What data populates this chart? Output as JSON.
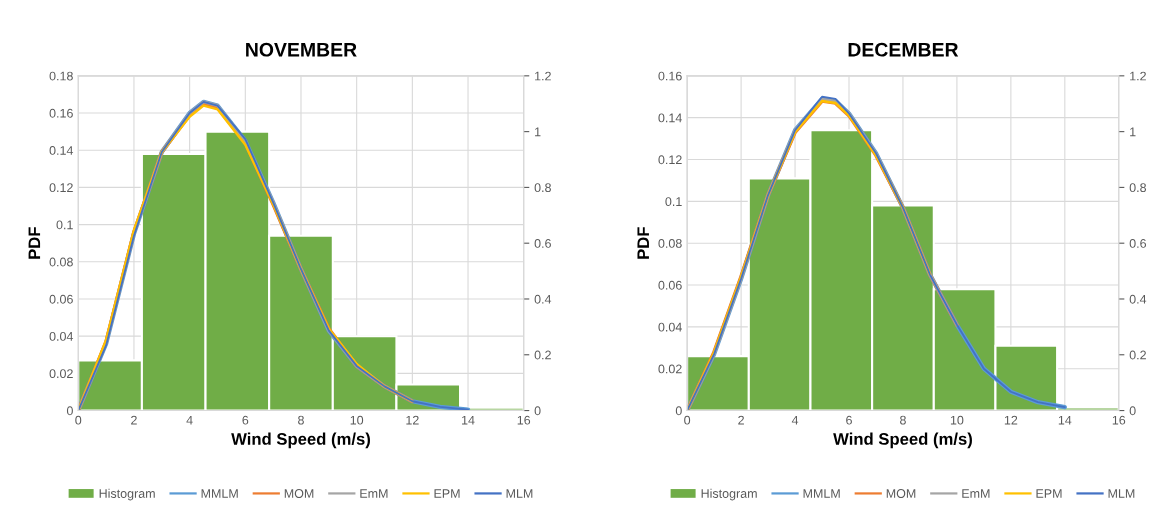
{
  "chart_data": [
    {
      "type": "histogram",
      "title": "NOVEMBER",
      "xlabel": "Wind Speed (m/s)",
      "ylabel": "PDF",
      "bins": [
        0,
        2.2857,
        4.5714,
        6.8571,
        9.1429,
        11.4286,
        13.7143,
        16
      ],
      "xlim": [
        0,
        16
      ],
      "xticks": [
        0,
        2,
        4,
        6,
        8,
        10,
        12,
        14,
        16
      ],
      "ylim": [
        0,
        0.18
      ],
      "yticks": [
        0,
        0.02,
        0.04,
        0.06,
        0.08,
        {
          "value": 0.1,
          "label": "0.1"
        },
        0.12,
        0.14,
        0.16,
        0.18
      ],
      "y2lim": [
        0,
        1.2
      ],
      "y2ticks": [
        0,
        0.2,
        0.4,
        0.6,
        0.8,
        {
          "value": 1,
          "label": "1"
        },
        1.2
      ],
      "grid": true,
      "legend": "bottom",
      "series": [
        {
          "name": "Histogram",
          "type": "histogram",
          "color": "#70ad47",
          "values": [
            0.027,
            0.138,
            0.15,
            0.094,
            0.04,
            0.014,
            0.0015
          ]
        },
        {
          "name": "MMLM",
          "type": "line",
          "color": "#5b9bd5",
          "x": [
            0,
            1,
            2,
            3,
            4,
            4.5,
            5,
            6,
            7,
            8,
            9,
            10,
            11,
            12,
            13,
            14
          ],
          "values": [
            0,
            0.036,
            0.095,
            0.139,
            0.16,
            0.166,
            0.164,
            0.145,
            0.112,
            0.076,
            0.043,
            0.024,
            0.013,
            0.005,
            0.002,
            0.0005
          ]
        },
        {
          "name": "MOM",
          "type": "line",
          "color": "#ed7d31",
          "x": [
            0,
            1,
            2,
            3,
            4,
            4.5,
            5,
            6,
            7,
            8,
            9,
            10,
            11,
            12
          ],
          "values": [
            0,
            0.037,
            0.096,
            0.139,
            0.159,
            0.165,
            0.163,
            0.144,
            0.111,
            0.076,
            0.044,
            0.024,
            0.013,
            0.005
          ]
        },
        {
          "name": "EmM",
          "type": "line",
          "color": "#a5a5a5",
          "x": [
            0,
            1,
            2,
            3,
            4,
            4.5,
            5,
            6,
            7,
            8,
            9,
            10,
            11,
            12
          ],
          "values": [
            0,
            0.036,
            0.095,
            0.139,
            0.16,
            0.166,
            0.164,
            0.145,
            0.112,
            0.076,
            0.043,
            0.024,
            0.013,
            0.005
          ]
        },
        {
          "name": "EPM",
          "type": "line",
          "color": "#ffc000",
          "x": [
            0,
            1,
            2,
            3,
            4,
            4.5,
            5,
            6,
            7,
            8,
            9,
            10,
            11,
            12
          ],
          "values": [
            0,
            0.038,
            0.097,
            0.139,
            0.158,
            0.164,
            0.162,
            0.143,
            0.111,
            0.076,
            0.044,
            0.025,
            0.013,
            0.005
          ]
        },
        {
          "name": "MLM",
          "type": "line",
          "color": "#4472c4",
          "x": [
            0,
            1,
            2,
            3,
            4,
            4.5,
            5,
            6,
            7,
            8,
            9,
            10,
            11,
            12,
            13,
            14
          ],
          "values": [
            0,
            0.035,
            0.094,
            0.139,
            0.16,
            0.166,
            0.164,
            0.146,
            0.112,
            0.076,
            0.043,
            0.024,
            0.013,
            0.005,
            0.002,
            0.0005
          ]
        }
      ]
    },
    {
      "type": "histogram",
      "title": "DECEMBER",
      "xlabel": "Wind Speed (m/s)",
      "ylabel": "PDF",
      "bins": [
        0,
        2.2857,
        4.5714,
        6.8571,
        9.1429,
        11.4286,
        13.7143,
        16
      ],
      "xlim": [
        0,
        16
      ],
      "xticks": [
        0,
        2,
        4,
        6,
        8,
        10,
        12,
        14,
        16
      ],
      "ylim": [
        0,
        0.16
      ],
      "yticks": [
        0,
        0.02,
        0.04,
        0.06,
        0.08,
        {
          "value": 0.1,
          "label": "0.1"
        },
        0.12,
        0.14,
        0.16
      ],
      "y2lim": [
        0,
        1.2
      ],
      "y2ticks": [
        0,
        0.2,
        0.4,
        0.6,
        0.8,
        {
          "value": 1,
          "label": "1"
        },
        1.2
      ],
      "grid": true,
      "legend": "bottom",
      "series": [
        {
          "name": "Histogram",
          "type": "histogram",
          "color": "#70ad47",
          "values": [
            0.026,
            0.111,
            0.134,
            0.098,
            0.058,
            0.031,
            0.0015
          ]
        },
        {
          "name": "MMLM",
          "type": "line",
          "color": "#5b9bd5",
          "x": [
            0,
            1,
            2,
            3,
            4,
            5,
            5.5,
            6,
            7,
            8,
            9,
            10,
            11,
            12,
            13,
            14
          ],
          "values": [
            0,
            0.027,
            0.063,
            0.103,
            0.134,
            0.149,
            0.148,
            0.142,
            0.123,
            0.097,
            0.065,
            0.041,
            0.02,
            0.009,
            0.004,
            0.0016
          ]
        },
        {
          "name": "MOM",
          "type": "line",
          "color": "#ed7d31",
          "x": [
            0,
            1,
            2,
            3,
            4,
            5,
            5.5,
            6,
            7,
            8,
            9,
            10
          ],
          "values": [
            0,
            0.028,
            0.064,
            0.103,
            0.133,
            0.148,
            0.147,
            0.141,
            0.122,
            0.097,
            0.065,
            0.041
          ]
        },
        {
          "name": "EmM",
          "type": "line",
          "color": "#a5a5a5",
          "x": [
            0,
            1,
            2,
            3,
            4,
            5,
            5.5,
            6,
            7,
            8,
            9,
            10
          ],
          "values": [
            0,
            0.027,
            0.063,
            0.103,
            0.134,
            0.149,
            0.148,
            0.142,
            0.123,
            0.097,
            0.065,
            0.041
          ]
        },
        {
          "name": "EPM",
          "type": "line",
          "color": "#ffc000",
          "x": [
            0,
            1,
            2,
            3,
            4,
            5,
            5.5,
            6,
            7,
            8,
            9
          ],
          "values": [
            0,
            0.028,
            0.064,
            0.103,
            0.133,
            0.148,
            0.147,
            0.141,
            0.122,
            0.097,
            0.065
          ]
        },
        {
          "name": "MLM",
          "type": "line",
          "color": "#4472c4",
          "x": [
            0,
            1,
            2,
            3,
            4,
            5,
            5.5,
            6,
            7,
            8,
            9,
            10,
            11,
            12,
            13,
            14
          ],
          "values": [
            0,
            0.027,
            0.063,
            0.103,
            0.134,
            0.15,
            0.149,
            0.142,
            0.123,
            0.097,
            0.065,
            0.041,
            0.02,
            0.009,
            0.004,
            0.0016
          ]
        }
      ]
    }
  ]
}
